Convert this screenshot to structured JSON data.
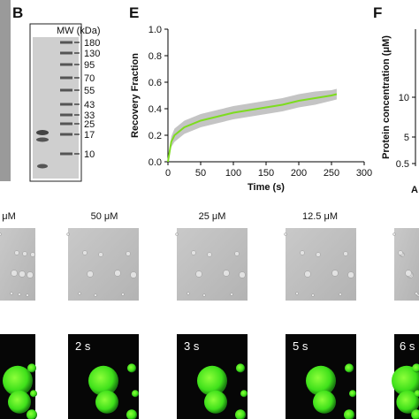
{
  "panels": {
    "b": "B",
    "e": "E",
    "f": "F",
    "a": "A"
  },
  "gel": {
    "header": "MW (kDa)",
    "markers": [
      "180",
      "130",
      "95",
      "70",
      "55",
      "43",
      "33",
      "25",
      "17",
      "10"
    ]
  },
  "chart_data": {
    "type": "line",
    "x_label": "Time (s)",
    "y_label": "Recovery Fraction",
    "x": [
      0,
      5,
      10,
      25,
      50,
      75,
      100,
      125,
      150,
      175,
      200,
      225,
      250,
      258
    ],
    "series": [
      {
        "color": "#7ddc1f",
        "band_color": "#c4c4c4",
        "values": [
          0,
          0.15,
          0.2,
          0.26,
          0.31,
          0.34,
          0.37,
          0.39,
          0.41,
          0.43,
          0.46,
          0.48,
          0.5,
          0.51
        ],
        "errors": [
          0,
          0.04,
          0.05,
          0.05,
          0.05,
          0.05,
          0.05,
          0.05,
          0.05,
          0.05,
          0.05,
          0.05,
          0.04,
          0.04
        ]
      }
    ],
    "xlim": [
      0,
      300
    ],
    "ylim": [
      0,
      1
    ],
    "xticks": [
      0,
      50,
      100,
      150,
      200,
      250,
      300
    ],
    "yticks": [
      {
        "value": 0,
        "label": "0.0"
      },
      {
        "value": 0.2,
        "label": "0.2"
      },
      {
        "value": 0.4,
        "label": "0.4"
      },
      {
        "value": 0.6,
        "label": "0.6"
      },
      {
        "value": 0.8,
        "label": "0.8"
      },
      {
        "value": 1,
        "label": "1.0"
      }
    ]
  },
  "f_axis": {
    "label": "Protein concentration (μM)",
    "ticks": [
      "10",
      "5",
      "0.5"
    ]
  },
  "concentrations": [
    "μM",
    "50 μM",
    "25 μM",
    "12.5 μM"
  ],
  "times": [
    "2 s",
    "3 s",
    "5 s",
    "6 s"
  ]
}
